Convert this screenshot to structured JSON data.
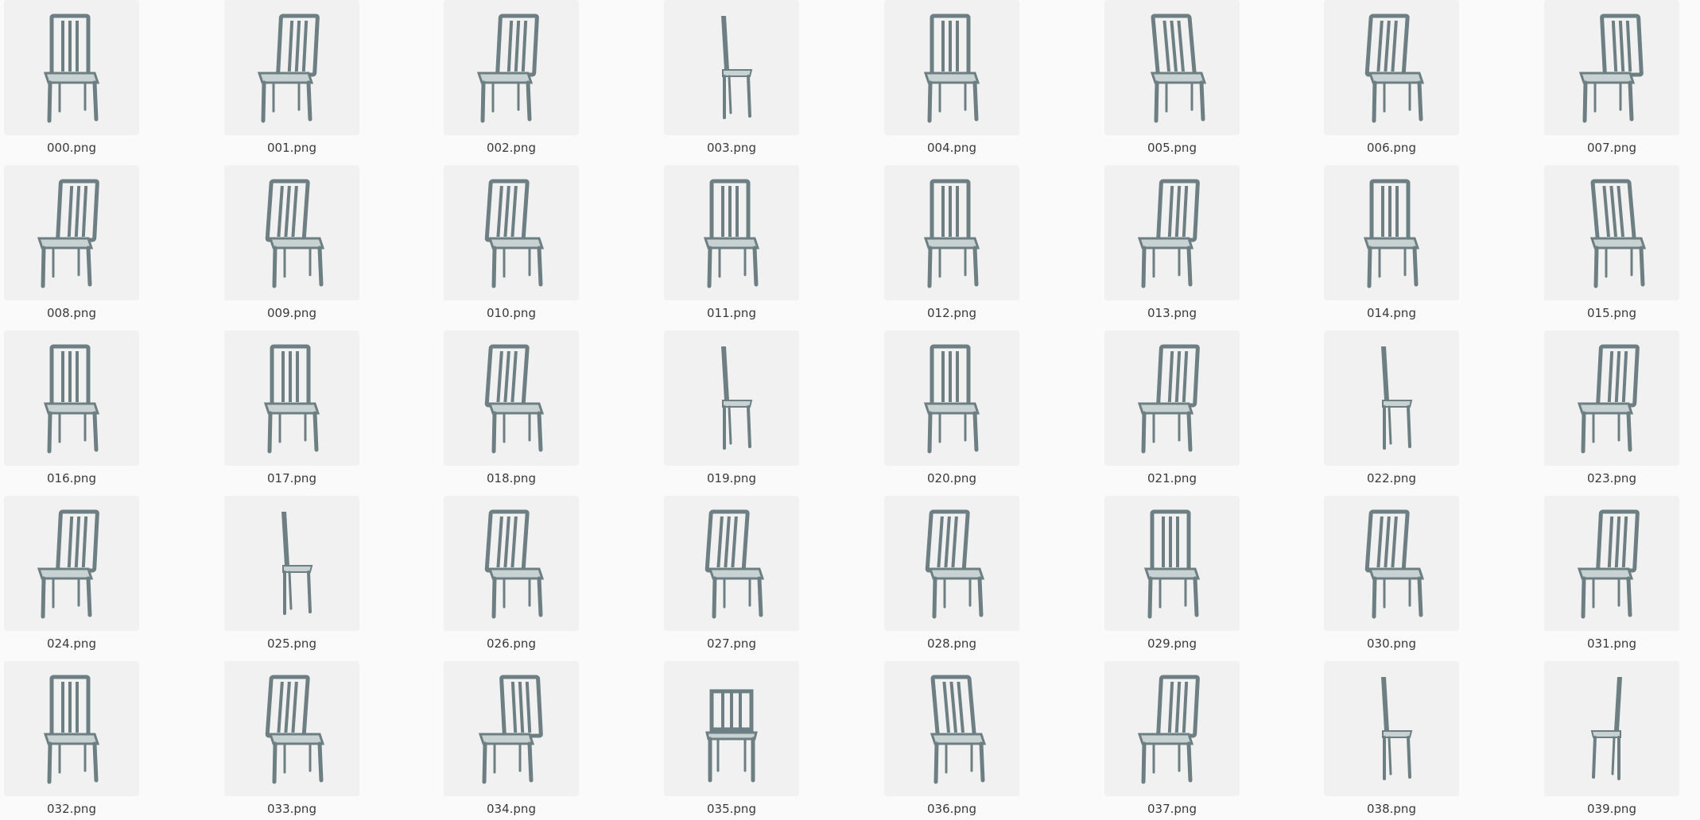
{
  "gallery": {
    "item_icon": "chair-thumbnail-icon",
    "colors": {
      "background": "#fafafa",
      "thumbnail_background": "#f1f1f1",
      "chair_frame": "#6d7f82",
      "chair_seat": "#c9d2d3",
      "label": "#3a3a3a"
    },
    "files": [
      {
        "name": "000.png",
        "view": "front"
      },
      {
        "name": "001.png",
        "view": "back-left"
      },
      {
        "name": "002.png",
        "view": "back-left"
      },
      {
        "name": "003.png",
        "view": "side"
      },
      {
        "name": "004.png",
        "view": "front"
      },
      {
        "name": "005.png",
        "view": "front-left"
      },
      {
        "name": "006.png",
        "view": "front-right"
      },
      {
        "name": "007.png",
        "view": "back-right"
      },
      {
        "name": "008.png",
        "view": "back-left"
      },
      {
        "name": "009.png",
        "view": "front-right"
      },
      {
        "name": "010.png",
        "view": "front-right"
      },
      {
        "name": "011.png",
        "view": "front"
      },
      {
        "name": "012.png",
        "view": "front"
      },
      {
        "name": "013.png",
        "view": "back-left"
      },
      {
        "name": "014.png",
        "view": "front"
      },
      {
        "name": "015.png",
        "view": "front-left"
      },
      {
        "name": "016.png",
        "view": "front"
      },
      {
        "name": "017.png",
        "view": "front"
      },
      {
        "name": "018.png",
        "view": "front-right"
      },
      {
        "name": "019.png",
        "view": "side"
      },
      {
        "name": "020.png",
        "view": "front"
      },
      {
        "name": "021.png",
        "view": "back-left"
      },
      {
        "name": "022.png",
        "view": "side"
      },
      {
        "name": "023.png",
        "view": "back-left"
      },
      {
        "name": "024.png",
        "view": "back-left"
      },
      {
        "name": "025.png",
        "view": "side"
      },
      {
        "name": "026.png",
        "view": "front-right"
      },
      {
        "name": "027.png",
        "view": "front-right"
      },
      {
        "name": "028.png",
        "view": "front-right"
      },
      {
        "name": "029.png",
        "view": "front"
      },
      {
        "name": "030.png",
        "view": "front-right"
      },
      {
        "name": "031.png",
        "view": "back-left"
      },
      {
        "name": "032.png",
        "view": "front"
      },
      {
        "name": "033.png",
        "view": "front-right"
      },
      {
        "name": "034.png",
        "view": "back-right"
      },
      {
        "name": "035.png",
        "view": "back"
      },
      {
        "name": "036.png",
        "view": "front-left"
      },
      {
        "name": "037.png",
        "view": "back-left"
      },
      {
        "name": "038.png",
        "view": "side"
      },
      {
        "name": "039.png",
        "view": "side-right"
      }
    ]
  }
}
